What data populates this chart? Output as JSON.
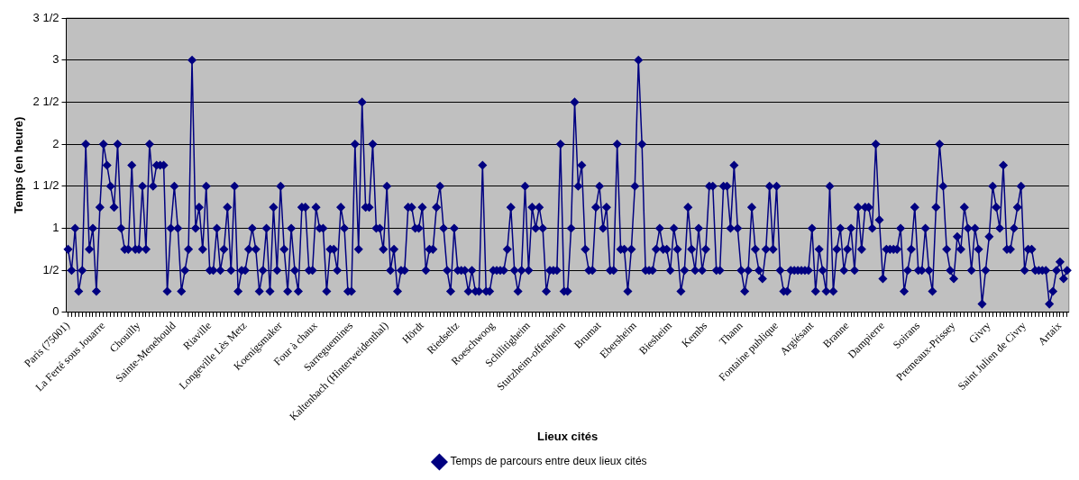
{
  "chart_data": {
    "type": "line",
    "xlabel": "Lieux cités",
    "ylabel": "Temps (en heure)",
    "categories": [
      "Paris (75001)",
      null,
      null,
      null,
      null,
      null,
      null,
      null,
      null,
      null,
      "La Ferté sous Jouarre",
      null,
      null,
      null,
      null,
      null,
      null,
      null,
      null,
      null,
      "Chouilly",
      null,
      null,
      null,
      null,
      null,
      null,
      null,
      null,
      null,
      "Sainte-Menehould",
      null,
      null,
      null,
      null,
      null,
      null,
      null,
      null,
      null,
      "Riaville",
      null,
      null,
      null,
      null,
      null,
      null,
      null,
      null,
      null,
      "Longeville Lès Metz",
      null,
      null,
      null,
      null,
      null,
      null,
      null,
      null,
      null,
      "Koenigsmaker",
      null,
      null,
      null,
      null,
      null,
      null,
      null,
      null,
      null,
      "Four à chaux",
      null,
      null,
      null,
      null,
      null,
      null,
      null,
      null,
      null,
      "Sarreguemines",
      null,
      null,
      null,
      null,
      null,
      null,
      null,
      null,
      null,
      "Kaltenbach (Hinterweidenthal)",
      null,
      null,
      null,
      null,
      null,
      null,
      null,
      null,
      null,
      "Hördt",
      null,
      null,
      null,
      null,
      null,
      null,
      null,
      null,
      null,
      "Riedseltz",
      null,
      null,
      null,
      null,
      null,
      null,
      null,
      null,
      null,
      "Roeschwoog",
      null,
      null,
      null,
      null,
      null,
      null,
      null,
      null,
      null,
      "Schilitigheim",
      null,
      null,
      null,
      null,
      null,
      null,
      null,
      null,
      null,
      "Stutzheim-offenheim",
      null,
      null,
      null,
      null,
      null,
      null,
      null,
      null,
      null,
      "Brumat",
      null,
      null,
      null,
      null,
      null,
      null,
      null,
      null,
      null,
      "Ebersheim",
      null,
      null,
      null,
      null,
      null,
      null,
      null,
      null,
      null,
      "Biesheim",
      null,
      null,
      null,
      null,
      null,
      null,
      null,
      null,
      null,
      "Kembs",
      null,
      null,
      null,
      null,
      null,
      null,
      null,
      null,
      null,
      "Thann",
      null,
      null,
      null,
      null,
      null,
      null,
      null,
      null,
      null,
      "Fontaine publique",
      null,
      null,
      null,
      null,
      null,
      null,
      null,
      null,
      null,
      "Argiésant",
      null,
      null,
      null,
      null,
      null,
      null,
      null,
      null,
      null,
      "Branne",
      null,
      null,
      null,
      null,
      null,
      null,
      null,
      null,
      null,
      "Dampierre",
      null,
      null,
      null,
      null,
      null,
      null,
      null,
      null,
      null,
      "Soirans",
      null,
      null,
      null,
      null,
      null,
      null,
      null,
      null,
      null,
      "Premeaux-Prissey",
      null,
      null,
      null,
      null,
      null,
      null,
      null,
      null,
      null,
      "Givry",
      null,
      null,
      null,
      null,
      null,
      null,
      null,
      null,
      null,
      "Saint Julien de Civry",
      null,
      null,
      null,
      null,
      null,
      null,
      null,
      null,
      null,
      "Artaix",
      null,
      null
    ],
    "series": [
      {
        "name": "Temps de parcours entre deux lieux cités",
        "color": "#000080",
        "values": [
          0.75,
          0.5,
          1,
          0.25,
          0.5,
          2,
          0.75,
          1,
          0.25,
          1.25,
          2,
          1.75,
          1.5,
          1.25,
          2,
          1,
          0.75,
          0.75,
          1.75,
          0.75,
          0.75,
          1.5,
          0.75,
          2,
          1.5,
          1.75,
          1.75,
          1.75,
          0.25,
          1,
          1.5,
          1,
          0.25,
          0.5,
          0.75,
          3,
          1,
          1.25,
          0.75,
          1.5,
          0.5,
          0.5,
          1,
          0.5,
          0.75,
          1.25,
          0.5,
          1.5,
          0.25,
          0.5,
          0.5,
          0.75,
          1,
          0.75,
          0.25,
          0.5,
          1,
          0.25,
          1.25,
          0.5,
          1.5,
          0.75,
          0.25,
          1,
          0.5,
          0.25,
          1.25,
          1.25,
          0.5,
          0.5,
          1.25,
          1,
          1,
          0.25,
          0.75,
          0.75,
          0.5,
          1.25,
          1,
          0.25,
          0.25,
          2,
          0.75,
          2.5,
          1.25,
          1.25,
          2,
          1,
          1,
          0.75,
          1.5,
          0.5,
          0.75,
          0.25,
          0.5,
          0.5,
          1.25,
          1.25,
          1,
          1,
          1.25,
          0.5,
          0.75,
          0.75,
          1.25,
          1.5,
          1,
          0.5,
          0.25,
          1,
          0.5,
          0.5,
          0.5,
          0.25,
          0.5,
          0.25,
          0.25,
          1.75,
          0.25,
          0.25,
          0.5,
          0.5,
          0.5,
          0.5,
          0.75,
          1.25,
          0.5,
          0.25,
          0.5,
          1.5,
          0.5,
          1.25,
          1,
          1.25,
          1,
          0.25,
          0.5,
          0.5,
          0.5,
          2,
          0.25,
          0.25,
          1,
          2.5,
          1.5,
          1.75,
          0.75,
          0.5,
          0.5,
          1.25,
          1.5,
          1,
          1.25,
          0.5,
          0.5,
          2,
          0.75,
          0.75,
          0.25,
          0.75,
          1.5,
          3,
          2,
          0.5,
          0.5,
          0.5,
          0.75,
          1,
          0.75,
          0.75,
          0.5,
          1,
          0.75,
          0.25,
          0.5,
          1.25,
          0.75,
          0.5,
          1,
          0.5,
          0.75,
          1.5,
          1.5,
          0.5,
          0.5,
          1.5,
          1.5,
          1,
          1.75,
          1,
          0.5,
          0.25,
          0.5,
          1.25,
          0.75,
          0.5,
          0.4,
          0.75,
          1.5,
          0.75,
          1.5,
          0.5,
          0.25,
          0.25,
          0.5,
          0.5,
          0.5,
          0.5,
          0.5,
          0.5,
          1,
          0.25,
          0.75,
          0.5,
          0.25,
          1.5,
          0.25,
          0.75,
          1,
          0.5,
          0.75,
          1,
          0.5,
          1.25,
          0.75,
          1.25,
          1.25,
          1,
          2,
          1.1,
          0.4,
          0.75,
          0.75,
          0.75,
          0.75,
          1,
          0.25,
          0.5,
          0.75,
          1.25,
          0.5,
          0.5,
          1,
          0.5,
          0.25,
          1.25,
          2,
          1.5,
          0.75,
          0.5,
          0.4,
          0.9,
          0.75,
          1.25,
          1,
          0.5,
          1,
          0.75,
          0.1,
          0.5,
          0.9,
          1.5,
          1.25,
          1,
          1.75,
          0.75,
          0.75,
          1,
          1.25,
          1.5,
          0.5,
          0.75,
          0.75,
          0.5,
          0.5,
          0.5,
          0.5,
          0.1,
          0.25,
          0.5,
          0.6,
          0.4,
          0.5
        ]
      }
    ],
    "ylim": [
      0,
      3.5
    ],
    "yticks": [
      0,
      {
        "value": 0.5,
        "label": "1/2"
      },
      1,
      {
        "value": 1.5,
        "label": "1 1/2"
      },
      2,
      {
        "value": 2.5,
        "label": "2 1/2"
      },
      3,
      {
        "value": 3.5,
        "label": "3 1/2"
      }
    ],
    "grid": "y",
    "legend": "bottom",
    "marker": "diamond",
    "line_style": "solid"
  }
}
